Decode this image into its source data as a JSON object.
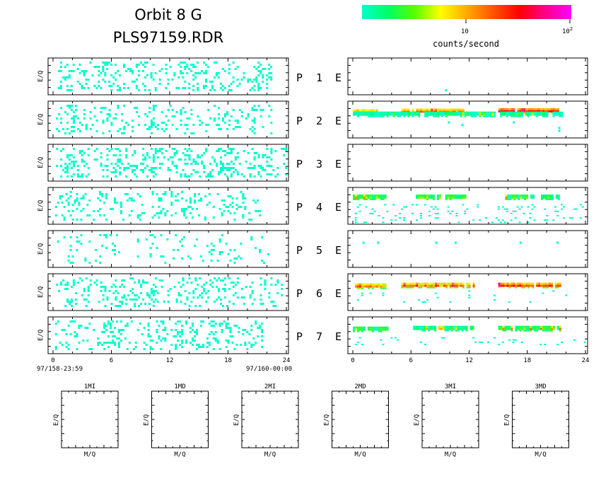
{
  "title": {
    "line1": "Orbit  8  G",
    "line2": "PLS97159.RDR"
  },
  "colorbar": {
    "label": "counts/second",
    "tick_10": "10",
    "tick_100_base": "10",
    "tick_100_exp": "2",
    "log_scale": true,
    "range": [
      1,
      100
    ],
    "stops": [
      "#00ffcc",
      "#00ff66",
      "#55ff00",
      "#ffff00",
      "#ffaa00",
      "#ff5500",
      "#ff0000",
      "#ff0088",
      "#ff00ff"
    ]
  },
  "left_axis": {
    "ylabel": "E/Q",
    "ticks": [
      "0",
      "6",
      "12",
      "18",
      "24"
    ],
    "start_label": "97/158-23:59",
    "end_label": "97/160-00:00"
  },
  "right_axis": {
    "ticks": [
      "0",
      "6",
      "12",
      "18",
      "24"
    ]
  },
  "panels": [
    {
      "p": "P",
      "n": "1",
      "e": "E"
    },
    {
      "p": "P",
      "n": "2",
      "e": "E"
    },
    {
      "p": "P",
      "n": "3",
      "e": "E"
    },
    {
      "p": "P",
      "n": "4",
      "e": "E"
    },
    {
      "p": "P",
      "n": "5",
      "e": "E"
    },
    {
      "p": "P",
      "n": "6",
      "e": "E"
    },
    {
      "p": "P",
      "n": "7",
      "e": "E"
    }
  ],
  "mass_panels": [
    {
      "title": "1MI",
      "xlabel": "M/Q",
      "ylabel": "E/Q"
    },
    {
      "title": "1MD",
      "xlabel": "M/Q",
      "ylabel": "E/Q"
    },
    {
      "title": "2MI",
      "xlabel": "M/Q",
      "ylabel": "E/Q"
    },
    {
      "title": "2MD",
      "xlabel": "M/Q",
      "ylabel": "E/Q"
    },
    {
      "title": "3MI",
      "xlabel": "M/Q",
      "ylabel": "E/Q"
    },
    {
      "title": "3MD",
      "xlabel": "M/Q",
      "ylabel": "E/Q"
    }
  ],
  "chart_data": {
    "type": "heatmap",
    "x_unit": "hours",
    "xlim": [
      0,
      24
    ],
    "color_scale": "log",
    "color_range": [
      1,
      100
    ],
    "left_spectrograms": [
      {
        "panel": "1",
        "density": 0.18,
        "active_ranges": [
          [
            0.5,
            22.5
          ]
        ]
      },
      {
        "panel": "2",
        "density": 0.13,
        "active_ranges": [
          [
            0.3,
            22.5
          ]
        ]
      },
      {
        "panel": "3",
        "density": 0.2,
        "active_ranges": [
          [
            0.3,
            24
          ]
        ]
      },
      {
        "panel": "4",
        "density": 0.13,
        "active_ranges": [
          [
            0.2,
            21.5
          ]
        ]
      },
      {
        "panel": "5",
        "density": 0.07,
        "active_ranges": [
          [
            0.2,
            22.2
          ]
        ]
      },
      {
        "panel": "6",
        "density": 0.15,
        "active_ranges": [
          [
            0.3,
            23.5
          ]
        ]
      },
      {
        "panel": "7",
        "density": 0.17,
        "active_ranges": [
          [
            0.2,
            21.5
          ]
        ]
      }
    ],
    "right_spectrograms": [
      {
        "panel": "1",
        "bands": [],
        "sparse": [
          [
            9.5,
            0.85
          ]
        ]
      },
      {
        "panel": "2",
        "bands": [
          {
            "t0": 0,
            "t1": 2.7,
            "row": 0.28,
            "level": 0.55
          },
          {
            "t0": 5,
            "t1": 11.5,
            "row": 0.26,
            "level": 0.55
          },
          {
            "t0": 15,
            "t1": 21.2,
            "row": 0.25,
            "level": 0.75
          },
          {
            "t0": 0,
            "t1": 21.5,
            "row": 0.34,
            "level": 0.05
          }
        ],
        "sparse": [
          [
            9.8,
            0.55
          ],
          [
            11.2,
            0.62
          ],
          [
            16.5,
            0.55
          ],
          [
            21.2,
            0.7
          ],
          [
            21.2,
            0.78
          ]
        ]
      },
      {
        "panel": "3",
        "bands": [],
        "sparse": []
      },
      {
        "panel": "4",
        "bands": [
          {
            "t0": 0,
            "t1": 3.3,
            "row": 0.25,
            "level": 0.2
          },
          {
            "t0": 6.5,
            "t1": 11.6,
            "row": 0.25,
            "level": 0.2
          },
          {
            "t0": 15.5,
            "t1": 21.2,
            "row": 0.25,
            "level": 0.15
          }
        ],
        "sparse_density": 0.1,
        "sparse_rows": [
          0.45,
          0.95
        ]
      },
      {
        "panel": "5",
        "bands": [],
        "sparse": [
          [
            1,
            0.3
          ],
          [
            2.5,
            0.3
          ],
          [
            8.5,
            0.3
          ],
          [
            10.5,
            0.3
          ],
          [
            17.2,
            0.3
          ],
          [
            21,
            0.3
          ]
        ]
      },
      {
        "panel": "6",
        "bands": [
          {
            "t0": 0,
            "t1": 3.3,
            "row": 0.32,
            "level": 0.55
          },
          {
            "t0": 5,
            "t1": 12.5,
            "row": 0.3,
            "level": 0.55
          },
          {
            "t0": 15,
            "t1": 21.5,
            "row": 0.3,
            "level": 0.7
          }
        ],
        "sparse_density": 0.04,
        "sparse_rows": [
          0.45,
          0.8
        ]
      },
      {
        "panel": "7",
        "bands": [
          {
            "t0": 0,
            "t1": 3.5,
            "row": 0.32,
            "level": 0.15
          },
          {
            "t0": 6,
            "t1": 12.5,
            "row": 0.3,
            "level": 0.12
          },
          {
            "t0": 15,
            "t1": 21.5,
            "row": 0.3,
            "level": 0.2
          }
        ],
        "sparse_density": 0.06,
        "sparse_rows": [
          0.55,
          0.75
        ]
      }
    ]
  }
}
